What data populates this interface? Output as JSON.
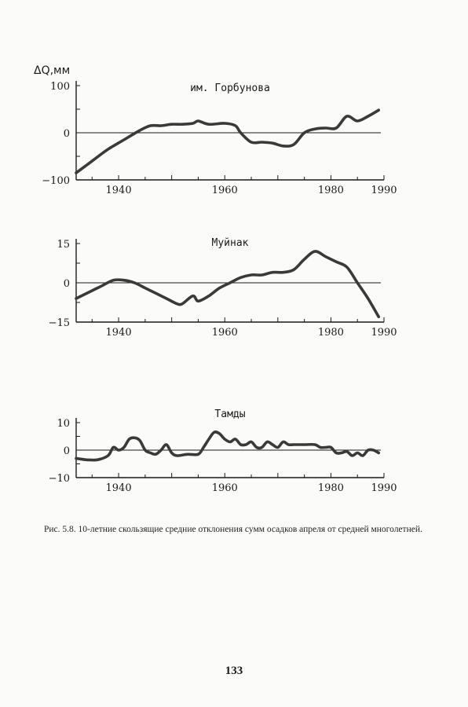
{
  "chart_data": [
    {
      "type": "line",
      "title": "им. Горбунова",
      "ylabel": "ΔQ,мм",
      "xlim": [
        1932,
        1990
      ],
      "ylim": [
        -100,
        100
      ],
      "xticks": [
        1940,
        1960,
        1980,
        1990
      ],
      "yticks": [
        100,
        0,
        -100
      ],
      "ytick_labels": [
        "100",
        "0",
        "−100"
      ],
      "zero_line": true,
      "series": [
        {
          "x": [
            1932,
            1935,
            1938,
            1941,
            1944,
            1946,
            1948,
            1950,
            1952,
            1954,
            1955,
            1957,
            1960,
            1962,
            1963,
            1965,
            1967,
            1969,
            1971,
            1973,
            1975,
            1977,
            1979,
            1981,
            1983,
            1985,
            1987,
            1989
          ],
          "y": [
            -85,
            -60,
            -35,
            -15,
            5,
            15,
            15,
            18,
            18,
            20,
            25,
            18,
            20,
            15,
            0,
            -20,
            -20,
            -22,
            -28,
            -25,
            0,
            8,
            10,
            10,
            35,
            25,
            35,
            48
          ]
        }
      ]
    },
    {
      "type": "line",
      "title": "Муйнак",
      "ylabel": "",
      "xlim": [
        1932,
        1990
      ],
      "ylim": [
        -15,
        15
      ],
      "xticks": [
        1940,
        1960,
        1980,
        1990
      ],
      "yticks": [
        15,
        0,
        -15
      ],
      "ytick_labels": [
        "15",
        "0",
        "−15"
      ],
      "zero_line": true,
      "series": [
        {
          "x": [
            1932,
            1935,
            1937,
            1939,
            1941,
            1943,
            1945,
            1947,
            1949,
            1951,
            1952,
            1954,
            1955,
            1957,
            1959,
            1961,
            1963,
            1965,
            1967,
            1969,
            1971,
            1973,
            1975,
            1977,
            1979,
            1981,
            1983,
            1985,
            1987,
            1989
          ],
          "y": [
            -6,
            -3,
            -1,
            1,
            1,
            0,
            -2,
            -4,
            -6,
            -8,
            -8,
            -5,
            -7,
            -5,
            -2,
            0,
            2,
            3,
            3,
            4,
            4,
            5,
            9,
            12,
            10,
            8,
            6,
            0,
            -6,
            -13
          ]
        }
      ]
    },
    {
      "type": "line",
      "title": "Тамды",
      "ylabel": "",
      "xlim": [
        1932,
        1990
      ],
      "ylim": [
        -10,
        10
      ],
      "xticks": [
        1940,
        1960,
        1980,
        1990
      ],
      "yticks": [
        10,
        0,
        -10
      ],
      "ytick_labels": [
        "10",
        "0",
        "−10"
      ],
      "zero_line": true,
      "series": [
        {
          "x": [
            1932,
            1934,
            1936,
            1938,
            1939,
            1940,
            1941,
            1942,
            1943,
            1944,
            1945,
            1946,
            1947,
            1948,
            1949,
            1950,
            1951,
            1953,
            1955,
            1956,
            1957,
            1958,
            1959,
            1960,
            1961,
            1962,
            1963,
            1964,
            1965,
            1966,
            1967,
            1968,
            1969,
            1970,
            1971,
            1972,
            1973,
            1975,
            1977,
            1978,
            1979,
            1980,
            1981,
            1982,
            1983,
            1984,
            1985,
            1986,
            1987,
            1988,
            1989
          ],
          "y": [
            -3,
            -3.5,
            -3.5,
            -2,
            1,
            0,
            1,
            4,
            4.5,
            3.5,
            0,
            -1,
            -1.5,
            0,
            2,
            -1,
            -2,
            -1.5,
            -1.5,
            1,
            4,
            6.5,
            6,
            4,
            3,
            4,
            2,
            2,
            3,
            1,
            1,
            3,
            2,
            1,
            3,
            2,
            2,
            2,
            2,
            1,
            1,
            1,
            -1,
            -1,
            -0.5,
            -2,
            -1,
            -2,
            0,
            0,
            -1
          ]
        }
      ]
    }
  ],
  "caption": "Рис. 5.8. 10-летние скользящие средние отклонения сумм осадков апреля от средней многолетней.",
  "page_number": "133",
  "colors": {
    "paper": "#fbfbf9",
    "ink": "#1a1a1a",
    "curve": "#3a3a3a"
  }
}
